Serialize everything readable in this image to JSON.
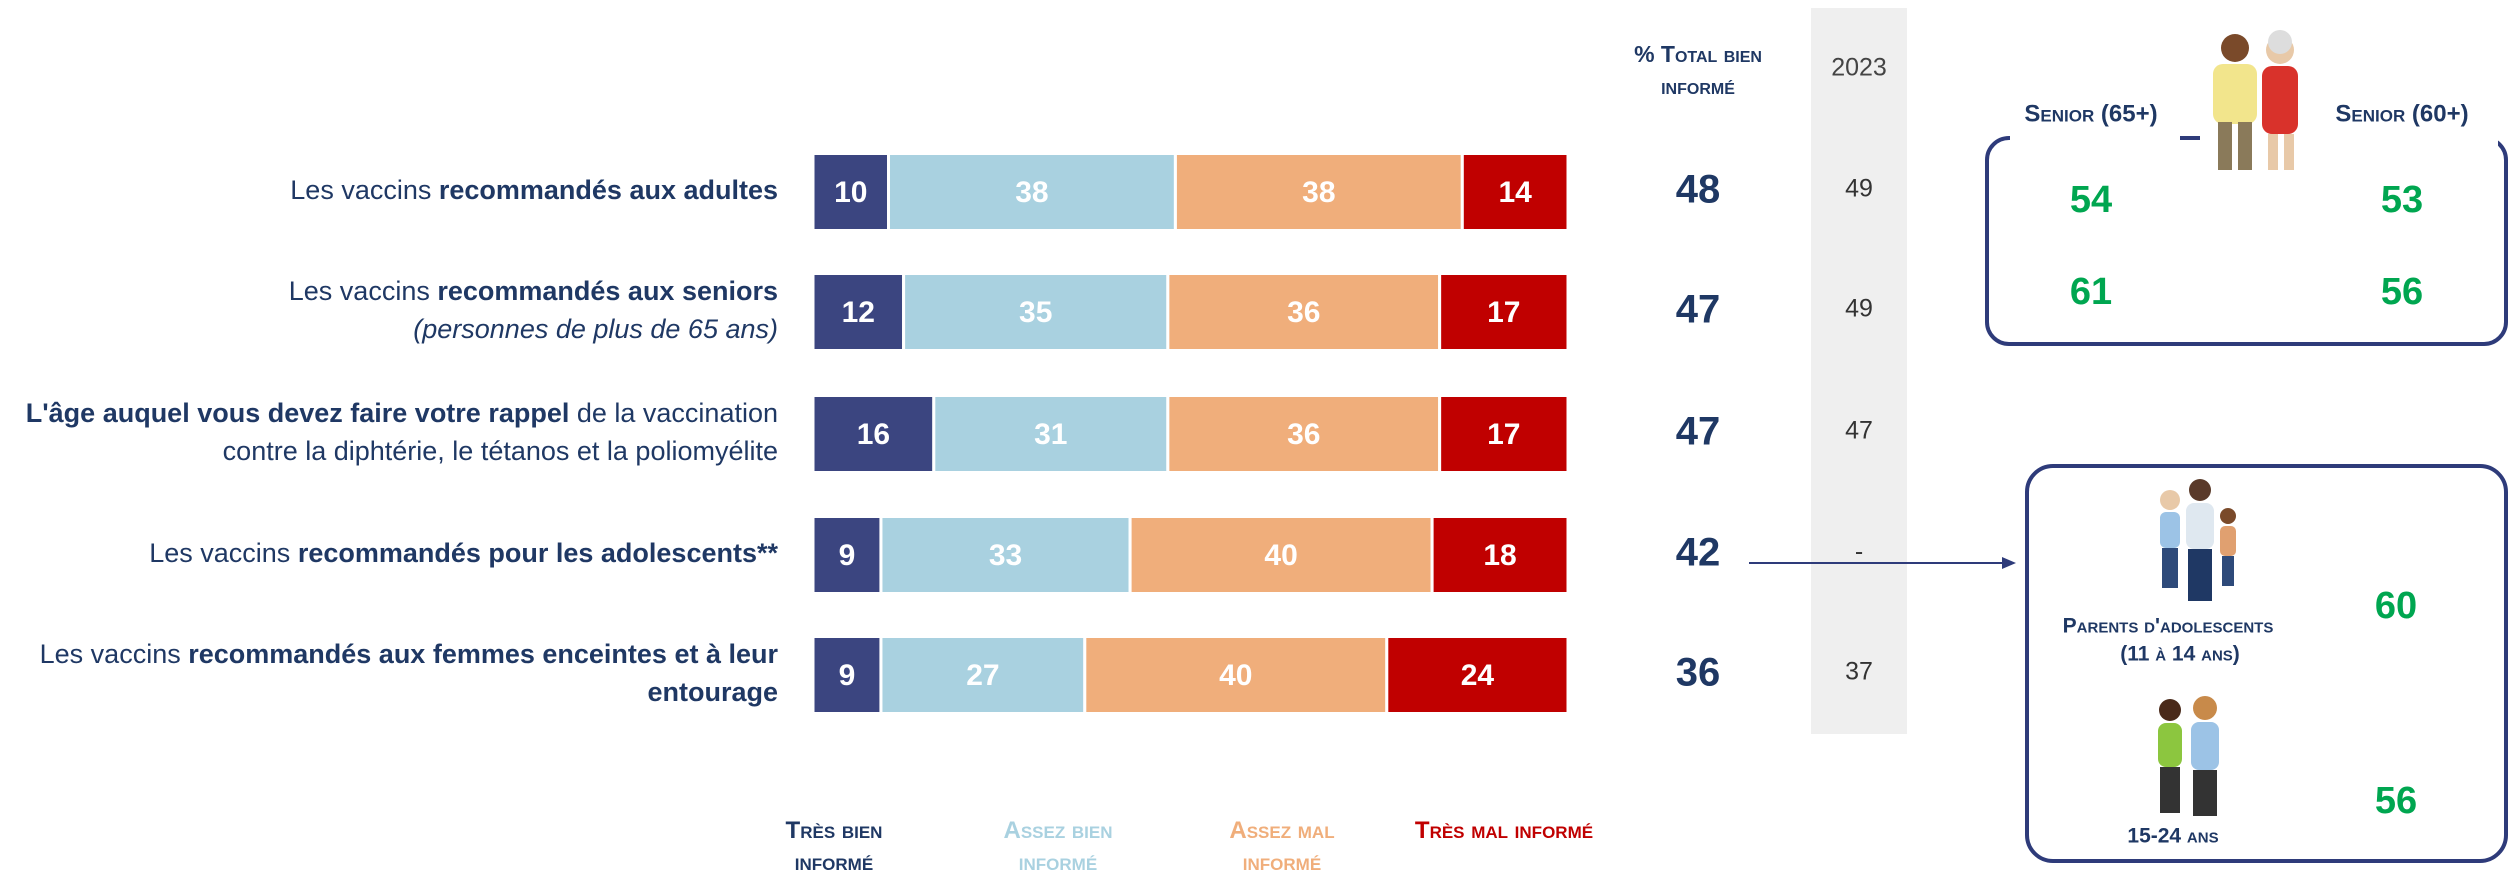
{
  "chart_data": {
    "type": "bar",
    "orientation": "horizontal",
    "stacked": true,
    "categories": [
      [
        [
          {
            "text": "Les vaccins ",
            "style": "normal"
          },
          {
            "text": "recommandés aux adultes",
            "style": "bold"
          }
        ]
      ],
      [
        [
          {
            "text": "Les vaccins ",
            "style": "normal"
          },
          {
            "text": "recommandés aux seniors",
            "style": "bold"
          }
        ],
        [
          {
            "text": "(personnes de plus de 65 ans)",
            "style": "italic"
          }
        ]
      ],
      [
        [
          {
            "text": "L'âge auquel vous devez faire votre rappel",
            "style": "bold"
          },
          {
            "text": " de la vaccination",
            "style": "normal"
          }
        ],
        [
          {
            "text": "contre la diphtérie, le tétanos et la poliomyélite",
            "style": "normal"
          }
        ]
      ],
      [
        [
          {
            "text": "Les vaccins ",
            "style": "normal"
          },
          {
            "text": "recommandés pour les adolescents**",
            "style": "bold"
          }
        ]
      ],
      [
        [
          {
            "text": "Les vaccins ",
            "style": "normal"
          },
          {
            "text": "recommandés aux femmes enceintes et à leur",
            "style": "bold"
          }
        ],
        [
          {
            "text": "entourage",
            "style": "bold"
          }
        ]
      ]
    ],
    "series": [
      {
        "name": "Très bien informé",
        "color": "#3b4580",
        "values": [
          10,
          12,
          16,
          9,
          9
        ]
      },
      {
        "name": "Assez bien informé",
        "color": "#a9d1e0",
        "values": [
          38,
          35,
          31,
          33,
          27
        ]
      },
      {
        "name": "Assez mal informé",
        "color": "#f0ae7b",
        "values": [
          38,
          36,
          36,
          40,
          40
        ]
      },
      {
        "name": "Très mal informé",
        "color": "#c00000",
        "values": [
          14,
          17,
          17,
          18,
          24
        ]
      }
    ],
    "xlim": [
      0,
      100
    ]
  },
  "totals": {
    "header": "% Total bien informé",
    "values": [
      48,
      47,
      47,
      42,
      36
    ]
  },
  "comparison": {
    "year": "2023",
    "values": [
      49,
      49,
      47,
      "-",
      37
    ]
  },
  "senior_box": {
    "groups": [
      {
        "label": "Senior (65+)",
        "values": [
          54,
          61
        ]
      },
      {
        "label": "Senior (60+)",
        "values": [
          53,
          56
        ]
      }
    ]
  },
  "age_box": {
    "groups": [
      {
        "label": [
          "Parents d'adolescents",
          "(11 à 14 ans)"
        ],
        "value": 60
      },
      {
        "label": [
          "15-24 ans"
        ],
        "value": 56
      }
    ]
  }
}
